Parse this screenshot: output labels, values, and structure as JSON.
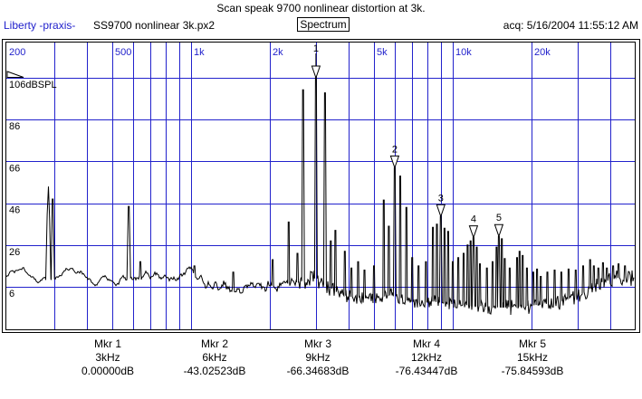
{
  "header": {
    "title": "Scan speak 9700 nonlinear distortion at 3k.",
    "app_name": "Liberty -praxis-",
    "file_name": "SS9700 nonlinear 3k.px2",
    "view_mode": "Spectrum",
    "acquisition": "acq: 5/16/2004 11:55:12 AM"
  },
  "colors": {
    "grid_blue": "#2222cc",
    "label_blue": "#2222cc",
    "trace_black": "#000000",
    "background": "#ffffff"
  },
  "chart_data": {
    "type": "line",
    "title": "Spectrum",
    "x_axis": {
      "scale": "log",
      "unit": "Hz",
      "min_hz": 200,
      "max_hz": 49400,
      "gridlines_hz": [
        300,
        400,
        500,
        600,
        700,
        800,
        900,
        1000,
        2000,
        3000,
        4000,
        5000,
        6000,
        7000,
        8000,
        9000,
        10000,
        20000,
        30000,
        40000
      ],
      "labels": [
        {
          "hz": 200,
          "text": "200"
        },
        {
          "hz": 500,
          "text": "500"
        },
        {
          "hz": 1000,
          "text": "1k"
        },
        {
          "hz": 2000,
          "text": "2k"
        },
        {
          "hz": 5000,
          "text": "5k"
        },
        {
          "hz": 10000,
          "text": "10k"
        },
        {
          "hz": 20000,
          "text": "20k"
        }
      ]
    },
    "y_axis": {
      "unit": "dBSPL",
      "reference_db": 106,
      "grid_step_db": 20,
      "labels": [
        {
          "db": 106,
          "text": "106dBSPL"
        },
        {
          "db": 86,
          "text": "86"
        },
        {
          "db": 66,
          "text": "66"
        },
        {
          "db": 46,
          "text": "46"
        },
        {
          "db": 26,
          "text": "26"
        },
        {
          "db": 6,
          "text": "6"
        }
      ]
    },
    "markers": [
      {
        "label": "1",
        "name": "Mkr 1",
        "freq": "3kHz",
        "hz": 3000,
        "level": "0.00000dB"
      },
      {
        "label": "2",
        "name": "Mkr 2",
        "freq": "6kHz",
        "hz": 6000,
        "level": "-43.02523dB"
      },
      {
        "label": "3",
        "name": "Mkr 3",
        "freq": "9kHz",
        "hz": 9000,
        "level": "-66.34683dB"
      },
      {
        "label": "4",
        "name": "Mkr 4",
        "freq": "12kHz",
        "hz": 12000,
        "level": "-76.43447dB"
      },
      {
        "label": "5",
        "name": "Mkr 5",
        "freq": "15kHz",
        "hz": 15000,
        "level": "-75.84593dB"
      }
    ],
    "noise_floor_anchors_hz_db_amp": [
      [
        200,
        12,
        1.5
      ],
      [
        230,
        15,
        1.5
      ],
      [
        260,
        8,
        1.5
      ],
      [
        300,
        10,
        1.5
      ],
      [
        340,
        14,
        1.5
      ],
      [
        380,
        14,
        2
      ],
      [
        420,
        7,
        2
      ],
      [
        470,
        10,
        2
      ],
      [
        520,
        8,
        2
      ],
      [
        560,
        10,
        2
      ],
      [
        620,
        11,
        2
      ],
      [
        700,
        12,
        2
      ],
      [
        800,
        10,
        2
      ],
      [
        900,
        12,
        2.5
      ],
      [
        1000,
        14,
        2.5
      ],
      [
        1150,
        7,
        2.5
      ],
      [
        1300,
        8,
        3
      ],
      [
        1500,
        5,
        3
      ],
      [
        1700,
        7,
        3
      ],
      [
        1900,
        6,
        3
      ],
      [
        2200,
        7,
        3
      ],
      [
        2500,
        8,
        3.5
      ],
      [
        2750,
        9,
        4
      ],
      [
        3000,
        10,
        4
      ],
      [
        3200,
        8,
        4
      ],
      [
        3500,
        4,
        3.5
      ],
      [
        3800,
        2,
        3
      ],
      [
        4200,
        1,
        3
      ],
      [
        4700,
        0.5,
        3
      ],
      [
        5200,
        1,
        3
      ],
      [
        5800,
        2,
        3.5
      ],
      [
        6200,
        1,
        3.5
      ],
      [
        6800,
        -1,
        3
      ],
      [
        7500,
        -1.5,
        3
      ],
      [
        8500,
        -1,
        3
      ],
      [
        9500,
        -2,
        3
      ],
      [
        10500,
        -2.5,
        3
      ],
      [
        12000,
        -3,
        3.5
      ],
      [
        13500,
        -3.5,
        3.5
      ],
      [
        15500,
        -4,
        3.5
      ],
      [
        17500,
        -3.5,
        4
      ],
      [
        19500,
        -3,
        4
      ],
      [
        22000,
        -2.5,
        4
      ],
      [
        25000,
        -1.5,
        4
      ],
      [
        28000,
        0.5,
        4
      ],
      [
        31000,
        3,
        4
      ],
      [
        34000,
        5.5,
        4
      ],
      [
        37000,
        8,
        4
      ],
      [
        40000,
        9.5,
        4
      ],
      [
        44000,
        10.5,
        4
      ],
      [
        49400,
        10.5,
        4.5
      ]
    ],
    "peaks_hz_db_width": [
      [
        285,
        54,
        3
      ],
      [
        296,
        48,
        2
      ],
      [
        578,
        44.5,
        2
      ],
      [
        640,
        18,
        1
      ],
      [
        1030,
        16,
        1
      ],
      [
        1450,
        13,
        1
      ],
      [
        2050,
        19,
        1
      ],
      [
        2360,
        37,
        1
      ],
      [
        2550,
        22,
        1
      ],
      [
        2680,
        100.3,
        1.5
      ],
      [
        3000,
        106,
        1.5
      ],
      [
        3250,
        98.8,
        1.5
      ],
      [
        3420,
        28,
        1
      ],
      [
        3560,
        33,
        1
      ],
      [
        3870,
        23,
        1
      ],
      [
        4100,
        15,
        1
      ],
      [
        4350,
        18,
        1
      ],
      [
        4600,
        14,
        1
      ],
      [
        5000,
        16,
        1
      ],
      [
        5450,
        47.5,
        1
      ],
      [
        5700,
        35,
        1
      ],
      [
        6000,
        62.97,
        1.5
      ],
      [
        6300,
        59,
        1
      ],
      [
        6650,
        44,
        1
      ],
      [
        7000,
        20,
        1
      ],
      [
        7400,
        16,
        1
      ],
      [
        7900,
        18,
        1
      ],
      [
        8400,
        34.5,
        1
      ],
      [
        8700,
        36,
        1
      ],
      [
        9000,
        39.65,
        1.5
      ],
      [
        9300,
        34,
        1
      ],
      [
        9600,
        32.5,
        1
      ],
      [
        10000,
        18,
        1
      ],
      [
        10500,
        20,
        1
      ],
      [
        11000,
        22,
        1
      ],
      [
        11400,
        26,
        1
      ],
      [
        11700,
        28,
        1
      ],
      [
        12000,
        29.57,
        1.5
      ],
      [
        12350,
        25,
        1
      ],
      [
        12700,
        17,
        1
      ],
      [
        13500,
        15,
        1
      ],
      [
        14200,
        18,
        1
      ],
      [
        14700,
        25,
        1
      ],
      [
        15000,
        30.15,
        1.5
      ],
      [
        15400,
        29,
        1
      ],
      [
        15800,
        19.5,
        1
      ],
      [
        16500,
        15,
        1
      ],
      [
        17600,
        20,
        1
      ],
      [
        18000,
        23,
        1
      ],
      [
        18500,
        21,
        1
      ],
      [
        19200,
        15,
        1
      ],
      [
        20300,
        13,
        1
      ],
      [
        21000,
        14.5,
        1
      ],
      [
        21700,
        11,
        1
      ],
      [
        23000,
        13,
        1
      ],
      [
        24500,
        14,
        1
      ],
      [
        26000,
        13,
        1
      ],
      [
        27700,
        14.5,
        1
      ],
      [
        29500,
        14,
        1
      ],
      [
        31500,
        16,
        1
      ],
      [
        33500,
        19,
        1
      ],
      [
        34600,
        16,
        1
      ],
      [
        36000,
        15,
        1
      ],
      [
        37500,
        17.5,
        1
      ],
      [
        38800,
        15,
        1
      ],
      [
        41000,
        16,
        1
      ],
      [
        43000,
        17,
        1
      ],
      [
        45500,
        16,
        1
      ]
    ]
  }
}
